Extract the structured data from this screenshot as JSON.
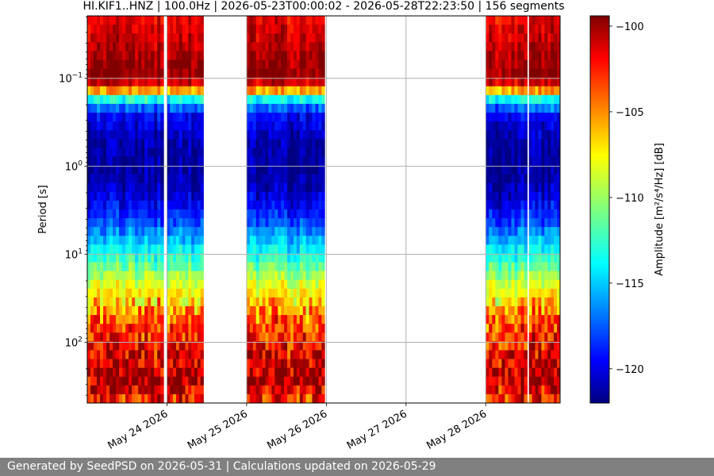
{
  "chart_data": {
    "type": "heatmap",
    "title": "HI.KIF1..HNZ | 100.0Hz | 2026-05-23T00:00:02 - 2026-05-28T22:23:50 | 156 segments",
    "ylabel": "Period [s]",
    "y_scale": "log",
    "y_inverted": true,
    "ylim": [
      0.0195,
      490
    ],
    "y_ticks": [
      {
        "value": 0.1,
        "label": "10",
        "sup": "−1"
      },
      {
        "value": 1,
        "label": "10",
        "sup": "0"
      },
      {
        "value": 10,
        "label": "10",
        "sup": "1"
      },
      {
        "value": 100,
        "label": "10",
        "sup": "2"
      }
    ],
    "xlim": [
      "2026-05-23T00:00:02",
      "2026-05-28T22:23:50"
    ],
    "x_ticks": [
      {
        "value": "2026-05-24",
        "label": "May 24 2026"
      },
      {
        "value": "2026-05-25",
        "label": "May 25 2026"
      },
      {
        "value": "2026-05-26",
        "label": "May 26 2026"
      },
      {
        "value": "2026-05-27",
        "label": "May 27 2026"
      },
      {
        "value": "2026-05-28",
        "label": "May 28 2026"
      }
    ],
    "grid": true,
    "colorbar": {
      "label": "Amplitude [m²/s⁴/Hz] [dB]",
      "colormap": "jet",
      "range": [
        -122,
        -99.4
      ],
      "ticks": [
        -100,
        -105,
        -110,
        -115,
        -120
      ],
      "tick_labels": [
        "−100",
        "−105",
        "−110",
        "−115",
        "−120"
      ]
    },
    "data_segments": [
      {
        "start": "2026-05-23T00:00:02",
        "end": "2026-05-23T23:00:00"
      },
      {
        "start": "2026-05-24T00:00:00",
        "end": "2026-05-24T11:00:00"
      },
      {
        "start": "2026-05-25T00:00:00",
        "end": "2026-05-25T23:30:00"
      },
      {
        "start": "2026-05-28T00:00:00",
        "end": "2026-05-28T12:30:00"
      },
      {
        "start": "2026-05-28T13:00:00",
        "end": "2026-05-28T22:23:50"
      }
    ],
    "amplitude_profile_db": [
      {
        "period": 0.0195,
        "db": -102
      },
      {
        "period": 0.04,
        "db": -101
      },
      {
        "period": 0.065,
        "db": -100
      },
      {
        "period": 0.1,
        "db": -99.6
      },
      {
        "period": 0.13,
        "db": -104
      },
      {
        "period": 0.17,
        "db": -113
      },
      {
        "period": 0.25,
        "db": -119
      },
      {
        "period": 0.5,
        "db": -121
      },
      {
        "period": 1,
        "db": -121.5
      },
      {
        "period": 2,
        "db": -120.5
      },
      {
        "period": 4,
        "db": -118
      },
      {
        "period": 7,
        "db": -115
      },
      {
        "period": 12,
        "db": -112
      },
      {
        "period": 25,
        "db": -108
      },
      {
        "period": 60,
        "db": -104
      },
      {
        "period": 150,
        "db": -101.5
      },
      {
        "period": 300,
        "db": -100.5
      },
      {
        "period": 490,
        "db": -103.5
      }
    ]
  },
  "footer": {
    "text": "Generated by SeedPSD on 2026-05-31 | Calculations updated on 2026-05-29"
  }
}
